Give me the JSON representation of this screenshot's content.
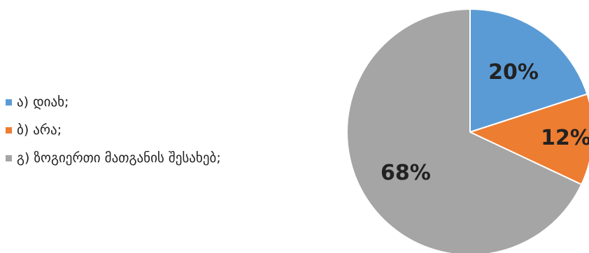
{
  "chart_data": {
    "type": "pie",
    "title": "",
    "categories": [
      "ა) დიახ;",
      "ბ)  არა;",
      "გ)  ზოგიერთი მათგანის შესახებ;"
    ],
    "values": [
      20,
      12,
      68
    ],
    "labels": [
      "20%",
      "12%",
      "68%"
    ],
    "colors": [
      "#5B9BD5",
      "#ED7D31",
      "#A5A5A5"
    ],
    "legend_position": "left"
  }
}
